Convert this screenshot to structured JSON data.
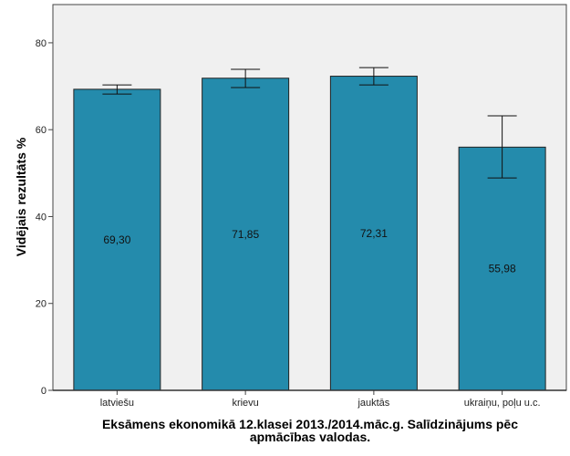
{
  "chart_data": {
    "type": "bar",
    "categories": [
      "latviešu",
      "krievu",
      "jauktās",
      "ukraiņu, poļu u.c."
    ],
    "values": [
      69.3,
      71.85,
      72.31,
      55.98
    ],
    "value_labels": [
      "69,30",
      "71,85",
      "72,31",
      "55,98"
    ],
    "error_bars": [
      {
        "low": 68.2,
        "high": 70.3
      },
      {
        "low": 69.7,
        "high": 73.9
      },
      {
        "low": 70.3,
        "high": 74.3
      },
      {
        "low": 48.9,
        "high": 63.2
      }
    ],
    "title": "",
    "xlabel_lines": [
      "Eksāmens ekonomikā 12.klasei 2013./2014.māc.g. Salīdzinājums pēc",
      "apmācības valodas."
    ],
    "ylabel": "Vidējais rezultāts %",
    "yticks": [
      0,
      20,
      40,
      60,
      80
    ],
    "ylim": [
      0,
      88.8
    ],
    "grid": false,
    "bar_color": "#248BAC",
    "plot_background": "#F0F0F0"
  }
}
